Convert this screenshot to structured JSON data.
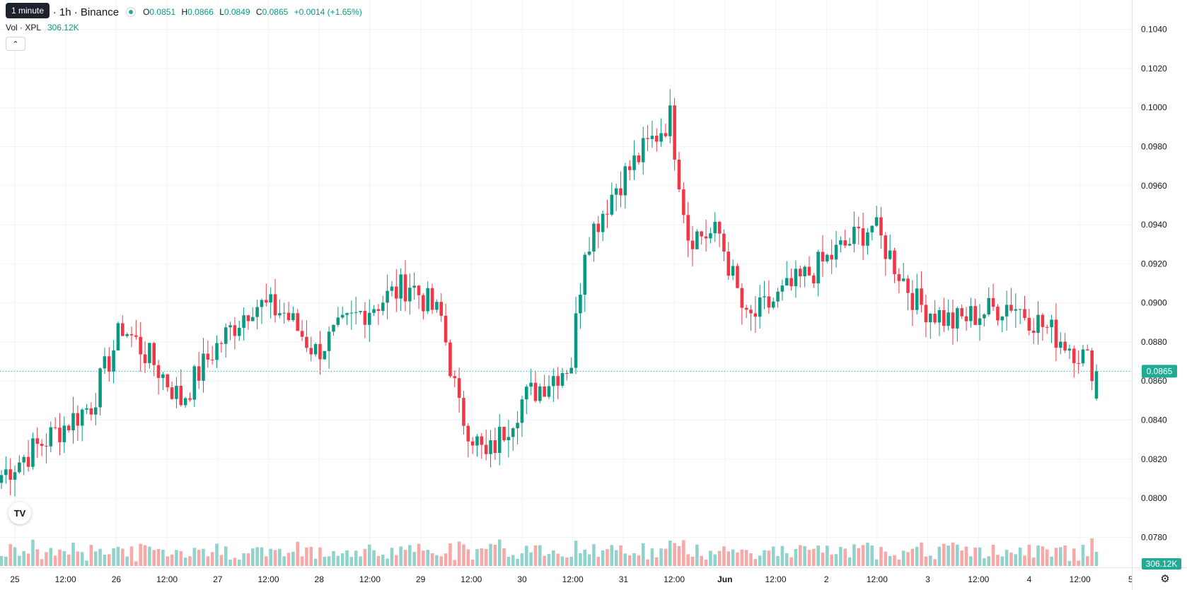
{
  "header": {
    "tooltip": "1 minute",
    "symbol": "TetherUS · 1h · Binance",
    "ohlc": {
      "o_label": "O",
      "o": "0.0851",
      "h_label": "H",
      "h": "0.0866",
      "l_label": "L",
      "l": "0.0849",
      "c_label": "C",
      "c": "0.0865",
      "change": "+0.0014 (+1.65%)"
    }
  },
  "volume": {
    "label": "Vol · XPL",
    "value": "306.12K",
    "axis_label": "306.12K"
  },
  "price_axis": {
    "labels": [
      "0.1040",
      "0.1020",
      "0.1000",
      "0.0980",
      "0.0960",
      "0.0940",
      "0.0920",
      "0.0900",
      "0.0880",
      "0.0860",
      "0.0840",
      "0.0820",
      "0.0800",
      "0.0780"
    ],
    "last_price": "0.0865"
  },
  "time_axis": {
    "labels": [
      "25",
      "12:00",
      "26",
      "12:00",
      "27",
      "12:00",
      "28",
      "12:00",
      "29",
      "12:00",
      "30",
      "12:00",
      "31",
      "12:00",
      "Jun",
      "12:00",
      "2",
      "12:00",
      "3",
      "12:00",
      "4",
      "12:00",
      "5"
    ]
  },
  "icons": {
    "collapse": "chevron-up-icon",
    "logo": "tradingview-logo-icon",
    "settings": "gear-icon"
  },
  "logo_text": "TV",
  "colors": {
    "up": "#089981",
    "down": "#f23645",
    "vol_up": "#92d2cc",
    "vol_down": "#f7a9a7",
    "grid": "#f0f3fa",
    "last": "#22ab94"
  },
  "chart_data": {
    "type": "candlestick",
    "interval": "1h",
    "ylim": [
      0.077,
      0.105
    ],
    "x": [
      "25",
      "26",
      "27",
      "28",
      "29",
      "30",
      "31",
      "Jun",
      "2",
      "3",
      "4",
      "5"
    ],
    "hours_shown": 244,
    "key_points": [
      {
        "t": 0,
        "c": 0.0812
      },
      {
        "t": 10,
        "c": 0.083
      },
      {
        "t": 20,
        "c": 0.0848
      },
      {
        "t": 27,
        "c": 0.0888
      },
      {
        "t": 34,
        "c": 0.0869
      },
      {
        "t": 40,
        "c": 0.085
      },
      {
        "t": 47,
        "c": 0.0875
      },
      {
        "t": 56,
        "c": 0.09
      },
      {
        "t": 63,
        "c": 0.0895
      },
      {
        "t": 70,
        "c": 0.0875
      },
      {
        "t": 80,
        "c": 0.0895
      },
      {
        "t": 91,
        "c": 0.091
      },
      {
        "t": 98,
        "c": 0.0892
      },
      {
        "t": 102,
        "c": 0.0845
      },
      {
        "t": 108,
        "c": 0.082
      },
      {
        "t": 116,
        "c": 0.085
      },
      {
        "t": 127,
        "c": 0.087
      },
      {
        "t": 130,
        "c": 0.093
      },
      {
        "t": 137,
        "c": 0.096
      },
      {
        "t": 149,
        "c": 0.0995
      },
      {
        "t": 153,
        "c": 0.0935
      },
      {
        "t": 160,
        "c": 0.0935
      },
      {
        "t": 166,
        "c": 0.089
      },
      {
        "t": 180,
        "c": 0.0915
      },
      {
        "t": 194,
        "c": 0.094
      },
      {
        "t": 204,
        "c": 0.09
      },
      {
        "t": 212,
        "c": 0.089
      },
      {
        "t": 225,
        "c": 0.09
      },
      {
        "t": 240,
        "c": 0.0875
      },
      {
        "t": 244,
        "c": 0.0865
      }
    ],
    "last": {
      "o": 0.0851,
      "h": 0.0866,
      "l": 0.0849,
      "c": 0.0865,
      "volume": "306.12K"
    }
  }
}
